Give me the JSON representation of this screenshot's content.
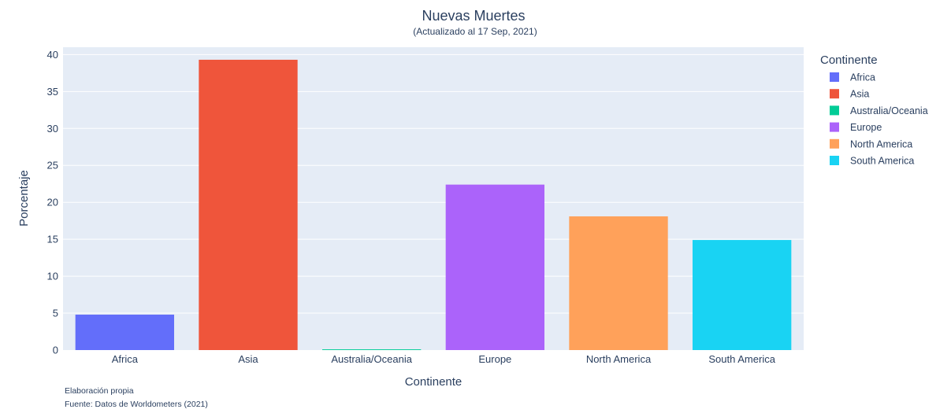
{
  "chart_data": {
    "type": "bar",
    "title": "Nuevas Muertes",
    "subtitle": "(Actualizado al 17 Sep, 2021)",
    "xlabel": "Continente",
    "ylabel": "Porcentaje",
    "ylim": [
      0,
      41
    ],
    "yticks": [
      0,
      5,
      10,
      15,
      20,
      25,
      30,
      35,
      40
    ],
    "grid": true,
    "categories": [
      "Africa",
      "Asia",
      "Australia/Oceania",
      "Europe",
      "North America",
      "South America"
    ],
    "values": [
      4.8,
      39.3,
      0.1,
      22.4,
      18.1,
      14.9
    ],
    "colors": [
      "#636efa",
      "#ef553b",
      "#00cc96",
      "#ab63fa",
      "#ffa15a",
      "#19d3f3"
    ],
    "legend": {
      "title": "Continente",
      "position": "right",
      "entries": [
        "Africa",
        "Asia",
        "Australia/Oceania",
        "Europe",
        "North America",
        "South America"
      ]
    },
    "annotations": [
      "Elaboración propia",
      "Fuente: Datos de Worldometers (2021)"
    ]
  }
}
